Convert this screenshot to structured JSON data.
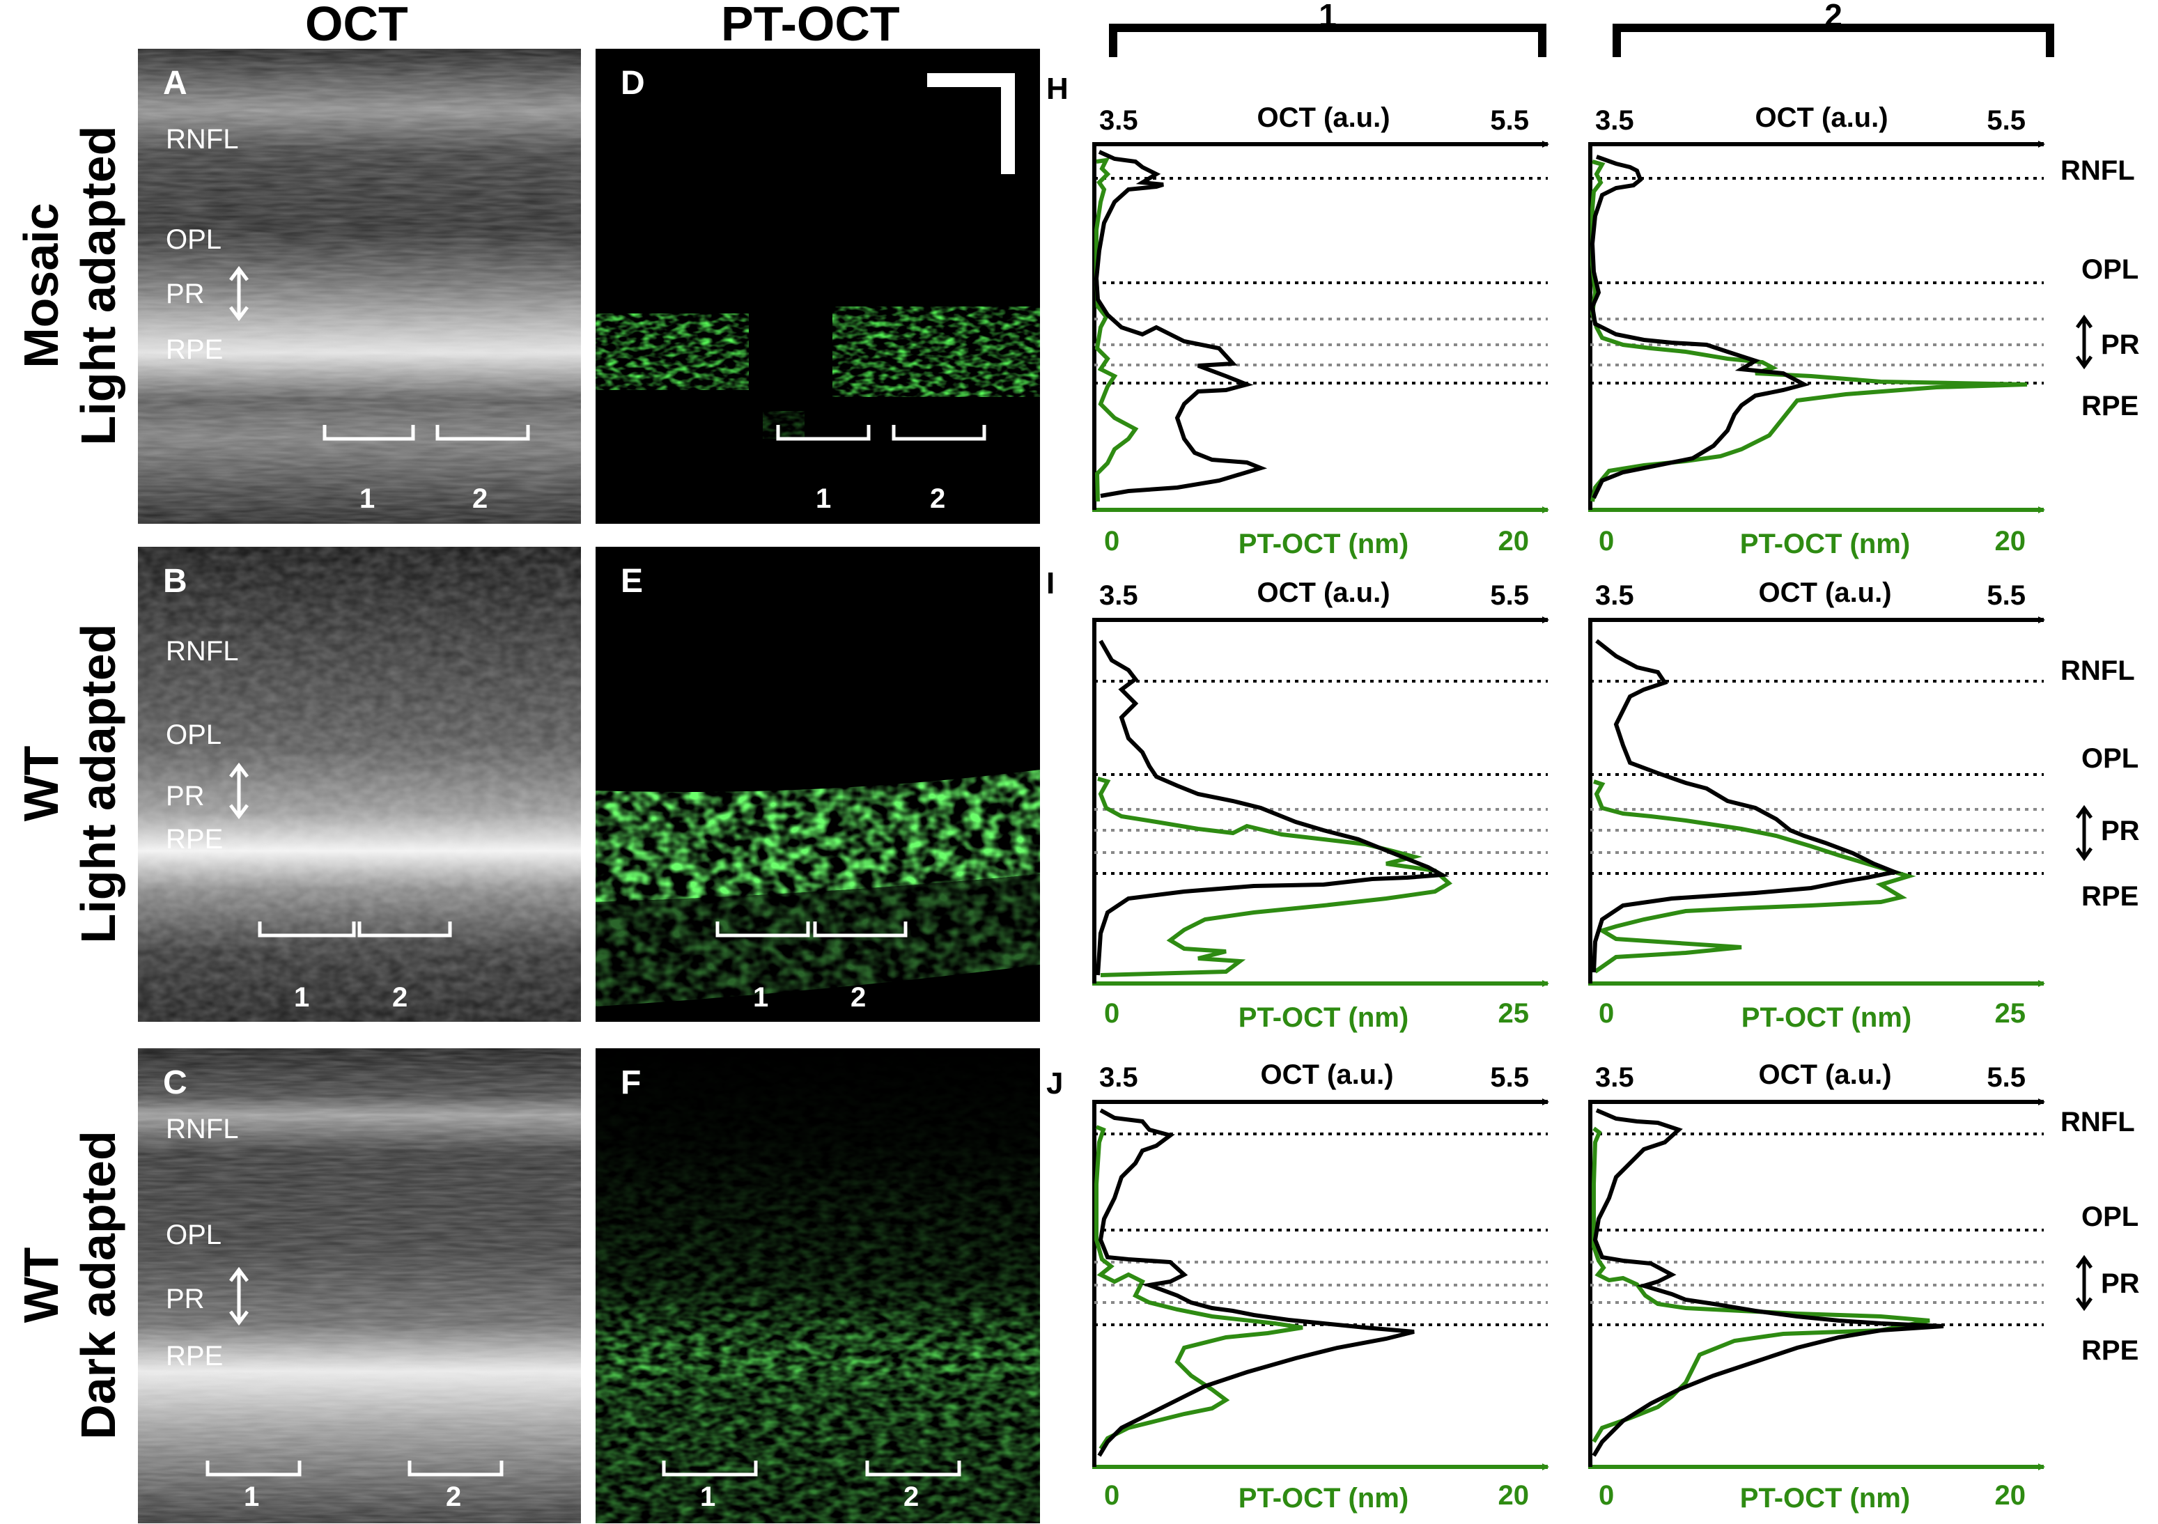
{
  "columns": {
    "oct": "OCT",
    "ptoct": "PT-OCT",
    "region1": "1",
    "region2": "2"
  },
  "rows": [
    {
      "line1": "Mosaic",
      "line2": "Light adapted"
    },
    {
      "line1": "WT",
      "line2": "Light adapted"
    },
    {
      "line1": "WT",
      "line2": "Dark adapted"
    }
  ],
  "panels": {
    "A": "A",
    "B": "B",
    "C": "C",
    "D": "D",
    "E": "E",
    "F": "F",
    "H": "H",
    "I": "I",
    "J": "J"
  },
  "image_layers": {
    "rnfl": "RNFL",
    "opl": "OPL",
    "pr": "PR",
    "rpe": "RPE"
  },
  "bracket_labels": {
    "one": "1",
    "two": "2"
  },
  "plots": {
    "oct_axis": {
      "title": "OCT (a.u.)",
      "min": "3.5",
      "max": "5.5"
    },
    "ptoct_axis_title": "PT-OCT (nm)",
    "ptoct_min": "0",
    "ptoct_max_H": "20",
    "ptoct_max_I": "25",
    "ptoct_max_J": "20",
    "layers": {
      "rnfl": "RNFL",
      "opl": "OPL",
      "pr": "PR",
      "rpe": "RPE"
    }
  },
  "colors": {
    "oct": "#000000",
    "ptoct": "#2e8b12",
    "green_signal": "#33dd33"
  }
}
